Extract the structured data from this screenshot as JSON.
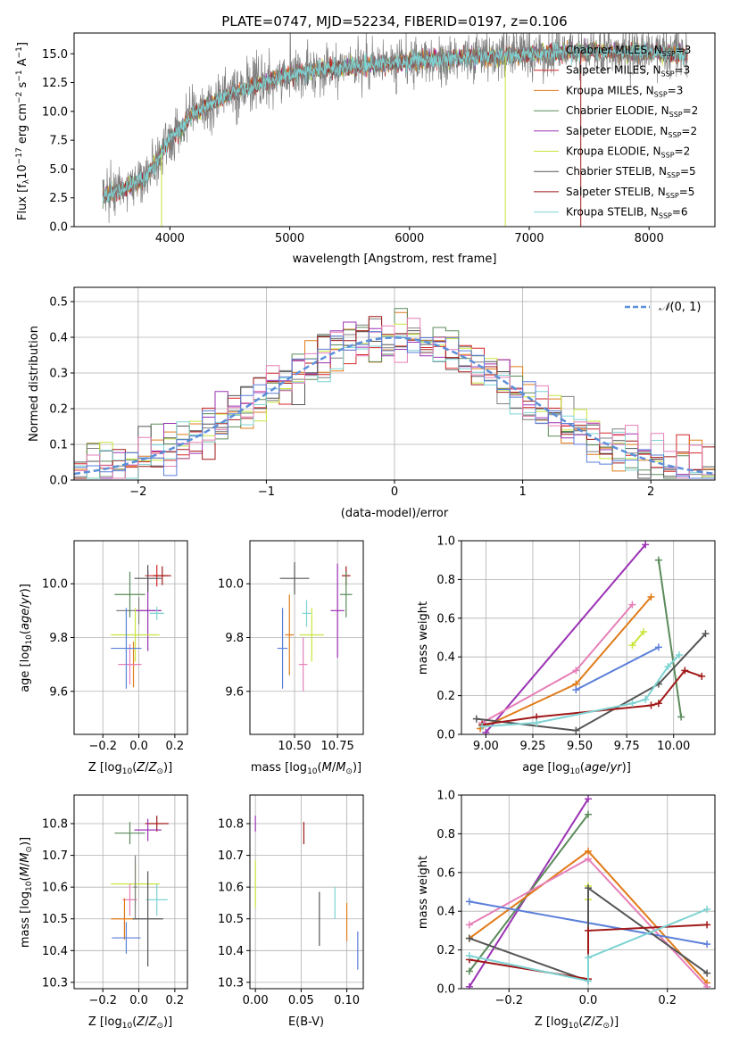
{
  "colors": {
    "chabrier_miles": "#7f7f7f",
    "salpeter_miles": "#d62728",
    "kroupa_miles": "#e07b18",
    "chabrier_elodie": "#5a8a5a",
    "salpeter_elodie": "#9b32b4",
    "kroupa_elodie": "#c8e63c",
    "chabrier_stelib": "#555555",
    "salpeter_stelib": "#a01818",
    "kroupa_stelib": "#7fd3d3",
    "normal": "#5b8fd9",
    "pink": "#e67fb8",
    "blue": "#5b7fd9"
  },
  "chart_data": [
    {
      "id": "spectrum",
      "type": "line",
      "title": "PLATE=0747, MJD=52234, FIBERID=0197, z=0.106",
      "xlabel": "wavelength [Angstrom, rest frame]",
      "ylabel": "Flux [fλ10⁻¹⁷ erg cm⁻² s⁻¹ A⁻¹]",
      "xlim": [
        3200,
        8550
      ],
      "ylim": [
        0,
        16.8
      ],
      "xticks": [
        4000,
        5000,
        6000,
        7000,
        8000
      ],
      "yticks": [
        0.0,
        2.5,
        5.0,
        7.5,
        10.0,
        12.5,
        15.0
      ],
      "legend_position": "right",
      "legend": [
        {
          "label": "Chabrier MILES, N_SSP=3",
          "color_key": "chabrier_miles"
        },
        {
          "label": "Salpeter MILES, N_SSP=3",
          "color_key": "salpeter_miles"
        },
        {
          "label": "Kroupa MILES, N_SSP=3",
          "color_key": "kroupa_miles"
        },
        {
          "label": "Chabrier ELODIE, N_SSP=2",
          "color_key": "chabrier_elodie"
        },
        {
          "label": "Salpeter ELODIE, N_SSP=2",
          "color_key": "salpeter_elodie"
        },
        {
          "label": "Kroupa ELODIE, N_SSP=2",
          "color_key": "kroupa_elodie"
        },
        {
          "label": "Chabrier STELIB, N_SSP=5",
          "color_key": "chabrier_stelib"
        },
        {
          "label": "Salpeter STELIB, N_SSP=5",
          "color_key": "salpeter_stelib"
        },
        {
          "label": "Kroupa STELIB, N_SSP=6",
          "color_key": "kroupa_stelib"
        }
      ],
      "continuum": {
        "x": [
          3450,
          3600,
          3800,
          4000,
          4200,
          4500,
          4800,
          5000,
          5300,
          5600,
          5900,
          6200,
          6500,
          6800,
          7100,
          7400,
          7700,
          8000,
          8300
        ],
        "y": [
          2.7,
          3.2,
          4.2,
          7.5,
          9.8,
          11.5,
          12.6,
          13.2,
          13.7,
          14.0,
          14.2,
          14.5,
          14.7,
          14.8,
          15.0,
          15.2,
          15.2,
          15.1,
          15.0
        ]
      }
    },
    {
      "id": "residuals",
      "type": "histogram",
      "xlabel": "(data-model)/error",
      "ylabel": "Normed distribution",
      "xlim": [
        -2.5,
        2.5
      ],
      "ylim": [
        0,
        0.54
      ],
      "xticks": [
        -2,
        -1,
        0,
        1,
        2
      ],
      "yticks": [
        0.0,
        0.1,
        0.2,
        0.3,
        0.4,
        0.5
      ],
      "legend_label": "N(0,1)",
      "legend_position": "top-right",
      "bin_width": 0.1
    },
    {
      "id": "age_vs_Z",
      "type": "scatter",
      "xlabel": "Z [log10(Z/Z☉)]",
      "ylabel": "age  [log10(age/yr)]",
      "xlim": [
        -0.36,
        0.27
      ],
      "ylim": [
        9.44,
        10.16
      ],
      "xticks": [
        -0.2,
        0.0,
        0.2
      ],
      "yticks": [
        9.6,
        9.8,
        10.0
      ],
      "points": [
        {
          "x": 0.0,
          "y": 9.9,
          "dx": 0.25,
          "dy": 0.1,
          "color_key": "chabrier_miles"
        },
        {
          "x": 0.1,
          "y": 10.03,
          "dx": 0.13,
          "dy": 0.08,
          "color_key": "salpeter_miles"
        },
        {
          "x": -0.03,
          "y": 9.7,
          "dx": 0.03,
          "dy": 0.17,
          "color_key": "kroupa_miles"
        },
        {
          "x": -0.05,
          "y": 9.96,
          "dx": 0.17,
          "dy": 0.17,
          "color_key": "chabrier_elodie"
        },
        {
          "x": 0.05,
          "y": 9.9,
          "dx": 0.15,
          "dy": 0.3,
          "color_key": "salpeter_elodie"
        },
        {
          "x": -0.02,
          "y": 9.81,
          "dx": 0.27,
          "dy": 0.2,
          "color_key": "kroupa_elodie"
        },
        {
          "x": 0.05,
          "y": 10.02,
          "dx": 0.15,
          "dy": 0.1,
          "color_key": "chabrier_stelib"
        },
        {
          "x": 0.13,
          "y": 10.03,
          "dx": 0.1,
          "dy": 0.07,
          "color_key": "salpeter_stelib"
        },
        {
          "x": 0.1,
          "y": 9.89,
          "dx": 0.08,
          "dy": 0.05,
          "color_key": "kroupa_stelib"
        },
        {
          "x": -0.05,
          "y": 9.7,
          "dx": 0.13,
          "dy": 0.15,
          "color_key": "pink"
        },
        {
          "x": -0.07,
          "y": 9.76,
          "dx": 0.17,
          "dy": 0.3,
          "color_key": "blue"
        }
      ]
    },
    {
      "id": "age_vs_mass",
      "type": "scatter",
      "xlabel": "mass [log10(M/M☉)]",
      "ylabel": "",
      "xlim": [
        10.24,
        10.9
      ],
      "ylim": [
        9.44,
        10.16
      ],
      "xticks": [
        10.5,
        10.75
      ],
      "yticks": [
        9.6,
        9.8,
        10.0
      ],
      "points": [
        {
          "x": 10.5,
          "y": 10.02,
          "dx": 0.17,
          "dy": 0.12,
          "color_key": "chabrier_stelib"
        },
        {
          "x": 10.8,
          "y": 10.03,
          "dx": 0.05,
          "dy": 0.07,
          "color_key": "salpeter_stelib"
        },
        {
          "x": 10.8,
          "y": 9.96,
          "dx": 0.07,
          "dy": 0.17,
          "color_key": "chabrier_elodie"
        },
        {
          "x": 10.75,
          "y": 9.9,
          "dx": 0.08,
          "dy": 0.35,
          "color_key": "salpeter_elodie"
        },
        {
          "x": 10.6,
          "y": 9.81,
          "dx": 0.14,
          "dy": 0.2,
          "color_key": "kroupa_elodie"
        },
        {
          "x": 10.57,
          "y": 9.89,
          "dx": 0.05,
          "dy": 0.1,
          "color_key": "kroupa_stelib"
        },
        {
          "x": 10.47,
          "y": 9.81,
          "dx": 0.05,
          "dy": 0.3,
          "color_key": "kroupa_miles"
        },
        {
          "x": 10.55,
          "y": 9.7,
          "dx": 0.05,
          "dy": 0.2,
          "color_key": "pink"
        },
        {
          "x": 10.43,
          "y": 9.76,
          "dx": 0.06,
          "dy": 0.3,
          "color_key": "blue"
        }
      ]
    },
    {
      "id": "weight_vs_age",
      "type": "line",
      "xlabel": "age  [log10(age/yr)]",
      "ylabel": "mass weight",
      "xlim": [
        8.87,
        10.22
      ],
      "ylim": [
        0,
        1
      ],
      "xticks": [
        9.0,
        9.25,
        9.5,
        9.75,
        10.0
      ],
      "yticks": [
        0.0,
        0.2,
        0.4,
        0.6,
        0.8,
        1.0
      ],
      "series": [
        {
          "color_key": "salpeter_elodie",
          "x": [
            9.0,
            9.85
          ],
          "y": [
            0.01,
            0.98
          ]
        },
        {
          "color_key": "kroupa_miles",
          "x": [
            8.97,
            9.48,
            9.88
          ],
          "y": [
            0.03,
            0.26,
            0.71
          ]
        },
        {
          "color_key": "pink",
          "x": [
            8.98,
            9.48,
            9.78
          ],
          "y": [
            0.06,
            0.33,
            0.67
          ]
        },
        {
          "color_key": "blue",
          "x": [
            9.48,
            9.92
          ],
          "y": [
            0.23,
            0.45
          ]
        },
        {
          "color_key": "kroupa_elodie",
          "x": [
            9.78,
            9.84
          ],
          "y": [
            0.46,
            0.53
          ]
        },
        {
          "color_key": "chabrier_elodie",
          "x": [
            9.92,
            10.04
          ],
          "y": [
            0.9,
            0.09
          ]
        },
        {
          "color_key": "chabrier_stelib",
          "x": [
            8.95,
            9.48,
            9.92,
            10.17
          ],
          "y": [
            0.08,
            0.02,
            0.26,
            0.52
          ]
        },
        {
          "color_key": "salpeter_stelib",
          "x": [
            8.98,
            9.27,
            9.88,
            9.92,
            10.06,
            10.15
          ],
          "y": [
            0.05,
            0.09,
            0.15,
            0.16,
            0.33,
            0.3
          ]
        },
        {
          "color_key": "kroupa_stelib",
          "x": [
            8.98,
            9.27,
            9.78,
            9.85,
            9.97,
            10.03
          ],
          "y": [
            0.04,
            0.06,
            0.16,
            0.18,
            0.35,
            0.41
          ]
        }
      ]
    },
    {
      "id": "mass_vs_Z",
      "type": "scatter",
      "xlabel": "Z [log10(Z/Z☉)]",
      "ylabel": "mass [log10(M/M☉)]",
      "xlim": [
        -0.36,
        0.27
      ],
      "ylim": [
        10.28,
        10.89
      ],
      "xticks": [
        -0.2,
        0.0,
        0.2
      ],
      "yticks": [
        10.3,
        10.4,
        10.5,
        10.6,
        10.7,
        10.8
      ],
      "points": [
        {
          "x": 0.1,
          "y": 10.8,
          "dx": 0.13,
          "dy": 0.05,
          "color_key": "salpeter_stelib"
        },
        {
          "x": 0.05,
          "y": 10.78,
          "dx": 0.15,
          "dy": 0.07,
          "color_key": "salpeter_elodie"
        },
        {
          "x": -0.05,
          "y": 10.77,
          "dx": 0.17,
          "dy": 0.07,
          "color_key": "chabrier_elodie"
        },
        {
          "x": -0.02,
          "y": 10.61,
          "dx": 0.27,
          "dy": 0.15,
          "color_key": "kroupa_elodie"
        },
        {
          "x": 0.1,
          "y": 10.56,
          "dx": 0.12,
          "dy": 0.1,
          "color_key": "kroupa_stelib"
        },
        {
          "x": -0.05,
          "y": 10.56,
          "dx": 0.08,
          "dy": 0.1,
          "color_key": "pink"
        },
        {
          "x": -0.08,
          "y": 10.5,
          "dx": 0.15,
          "dy": 0.13,
          "color_key": "kroupa_miles"
        },
        {
          "x": 0.05,
          "y": 10.5,
          "dx": 0.17,
          "dy": 0.3,
          "color_key": "chabrier_stelib"
        },
        {
          "x": -0.07,
          "y": 10.44,
          "dx": 0.16,
          "dy": 0.1,
          "color_key": "blue"
        },
        {
          "x": -0.02,
          "y": 10.6,
          "dx": 0.02,
          "dy": 0.2,
          "color_key": "chabrier_miles"
        }
      ]
    },
    {
      "id": "mass_vs_ebv",
      "type": "scatter",
      "xlabel": "E(B-V)",
      "ylabel": "",
      "xlim": [
        -0.006,
        0.118
      ],
      "ylim": [
        10.28,
        10.89
      ],
      "xticks": [
        0.0,
        0.05,
        0.1
      ],
      "yticks": [
        10.3,
        10.4,
        10.5,
        10.6,
        10.7,
        10.8
      ],
      "points": [
        {
          "x": 0.0,
          "y": 10.8,
          "dx": 0.0,
          "dy": 0.05,
          "color_key": "salpeter_elodie"
        },
        {
          "x": 0.0,
          "y": 10.61,
          "dx": 0.0,
          "dy": 0.15,
          "color_key": "kroupa_elodie"
        },
        {
          "x": 0.053,
          "y": 10.77,
          "dx": 0.0,
          "dy": 0.07,
          "color_key": "salpeter_stelib"
        },
        {
          "x": 0.07,
          "y": 10.5,
          "dx": 0.0,
          "dy": 0.17,
          "color_key": "chabrier_stelib"
        },
        {
          "x": 0.087,
          "y": 10.55,
          "dx": 0.0,
          "dy": 0.1,
          "color_key": "kroupa_stelib"
        },
        {
          "x": 0.1,
          "y": 10.49,
          "dx": 0.0,
          "dy": 0.12,
          "color_key": "kroupa_miles"
        },
        {
          "x": 0.112,
          "y": 10.4,
          "dx": 0.0,
          "dy": 0.12,
          "color_key": "blue"
        }
      ]
    },
    {
      "id": "weight_vs_Z",
      "type": "line",
      "xlabel": "Z [log10(Z/Z☉)]",
      "ylabel": "mass weight",
      "xlim": [
        -0.32,
        0.32
      ],
      "ylim": [
        0,
        1
      ],
      "xticks": [
        -0.2,
        0.0,
        0.2
      ],
      "yticks": [
        0.0,
        0.2,
        0.4,
        0.6,
        0.8,
        1.0
      ],
      "series": [
        {
          "color_key": "salpeter_elodie",
          "x": [
            -0.3,
            0.0
          ],
          "y": [
            0.01,
            0.98
          ]
        },
        {
          "color_key": "chabrier_elodie",
          "x": [
            -0.3,
            0.0
          ],
          "y": [
            0.09,
            0.9
          ]
        },
        {
          "color_key": "kroupa_miles",
          "x": [
            -0.3,
            0.0,
            0.3
          ],
          "y": [
            0.26,
            0.71,
            0.03
          ]
        },
        {
          "color_key": "pink",
          "x": [
            -0.3,
            0.0,
            0.3
          ],
          "y": [
            0.33,
            0.67,
            0.01
          ]
        },
        {
          "color_key": "blue",
          "x": [
            -0.3,
            0.3
          ],
          "y": [
            0.45,
            0.23
          ]
        },
        {
          "color_key": "kroupa_elodie",
          "x": [
            0.0,
            0.0
          ],
          "y": [
            0.46,
            0.53
          ]
        },
        {
          "color_key": "chabrier_stelib",
          "x": [
            -0.3,
            0.0,
            0.0,
            0.3
          ],
          "y": [
            0.26,
            0.04,
            0.52,
            0.08
          ]
        },
        {
          "color_key": "salpeter_stelib",
          "x": [
            -0.3,
            0.0,
            0.0,
            0.3
          ],
          "y": [
            0.15,
            0.05,
            0.3,
            0.33
          ]
        },
        {
          "color_key": "kroupa_stelib",
          "x": [
            -0.3,
            0.0,
            0.0,
            0.3
          ],
          "y": [
            0.17,
            0.04,
            0.16,
            0.41
          ]
        }
      ]
    }
  ]
}
